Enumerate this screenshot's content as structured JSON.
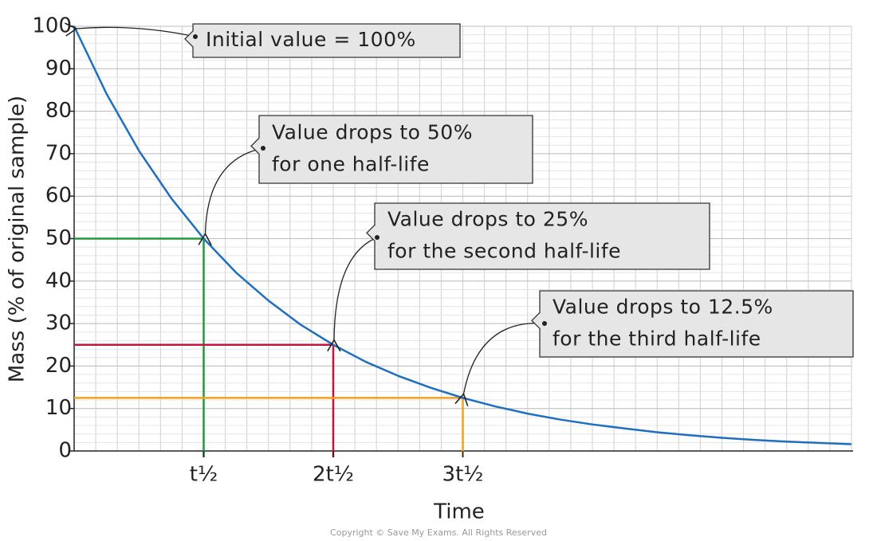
{
  "chart_data": {
    "type": "line",
    "x_label": "Time",
    "y_label": "Mass (% of original sample)",
    "x": [
      0,
      0.25,
      0.5,
      0.75,
      1,
      1.25,
      1.5,
      1.75,
      2,
      2.25,
      2.5,
      2.75,
      3,
      3.25,
      3.5,
      3.75,
      4,
      4.25,
      4.5,
      4.75,
      5,
      5.25,
      5.5,
      5.75,
      6
    ],
    "series": [
      {
        "color": "#1f6fc0",
        "values": [
          100,
          84.1,
          70.7,
          59.5,
          50,
          42,
          35.4,
          29.7,
          25,
          21,
          17.7,
          14.9,
          12.5,
          10.5,
          8.8,
          7.4,
          6.25,
          5.3,
          4.4,
          3.7,
          3.1,
          2.6,
          2.2,
          1.9,
          1.6
        ]
      }
    ],
    "xlim": [
      0,
      6
    ],
    "ylim": [
      0,
      100
    ],
    "xticks": [
      {
        "value": 1,
        "label": "t½"
      },
      {
        "value": 2,
        "label": "2t½"
      },
      {
        "value": 3,
        "label": "3t½"
      }
    ],
    "yticks": [
      0,
      10,
      20,
      30,
      40,
      50,
      60,
      70,
      80,
      90,
      100
    ],
    "grid": true,
    "guides": [
      {
        "x": 1,
        "y": 50,
        "color": "#1f9a3c"
      },
      {
        "x": 2,
        "y": 25,
        "color": "#c8143c"
      },
      {
        "x": 3,
        "y": 12.5,
        "color": "#f5a01a"
      }
    ],
    "annotations": [
      {
        "x": 0,
        "y": 100,
        "lines": [
          "Initial value = 100%"
        ]
      },
      {
        "x": 1,
        "y": 50,
        "lines": [
          "Value drops to 50%",
          "for one half-life"
        ]
      },
      {
        "x": 2,
        "y": 25,
        "lines": [
          "Value drops to 25%",
          "for the second half-life"
        ]
      },
      {
        "x": 3,
        "y": 12.5,
        "lines": [
          "Value drops to 12.5%",
          "for the third half-life"
        ]
      }
    ],
    "footer": "Copyright © Save My Exams. All Rights Reserved"
  }
}
